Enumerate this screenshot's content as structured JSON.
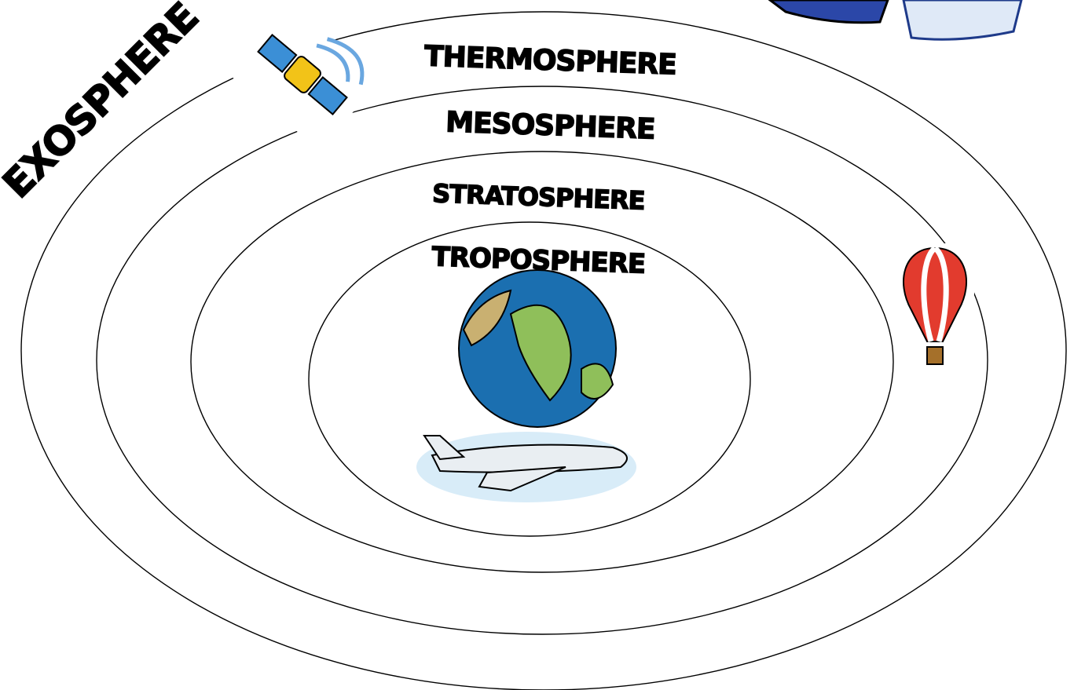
{
  "layers": [
    {
      "label": "EXOSPHERE"
    },
    {
      "label": "THERMOSPHERE"
    },
    {
      "label": "MESOSPHERE"
    },
    {
      "label": "STRATOSPHERE"
    },
    {
      "label": "TROPOSPHERE"
    }
  ]
}
